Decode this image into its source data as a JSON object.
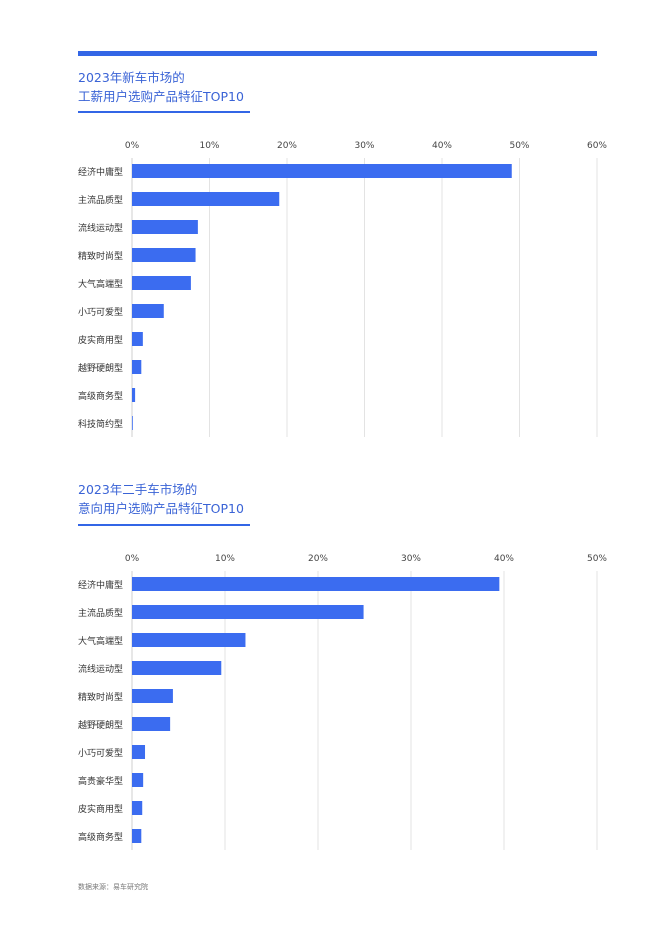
{
  "theme": {
    "accent": "#3366e6",
    "bar": "#3b6cf0",
    "grid": "#e3e3e3",
    "title_color": "#3a63d6"
  },
  "chart1_title": {
    "line1": "2023年新车市场的",
    "line2": "工薪用户选购产品特征TOP10"
  },
  "chart2_title": {
    "line1": "2023年二手车市场的",
    "line2": "意向用户选购产品特征TOP10"
  },
  "source": "数据来源：易车研究院",
  "chart_data": [
    {
      "type": "bar",
      "orientation": "horizontal",
      "title": "2023年新车市场的工薪用户选购产品特征TOP10",
      "xlim": [
        0,
        60
      ],
      "ticks": [
        "0%",
        "10%",
        "20%",
        "30%",
        "40%",
        "50%",
        "60%"
      ],
      "grid": true,
      "categories": [
        "经济中庸型",
        "主流品质型",
        "流线运动型",
        "精致时尚型",
        "大气高端型",
        "小巧可爱型",
        "皮实商用型",
        "越野硬朗型",
        "高级商务型",
        "科技简约型"
      ],
      "values": [
        49,
        19,
        8.5,
        8.2,
        7.6,
        4.1,
        1.4,
        1.2,
        0.4,
        0.1
      ]
    },
    {
      "type": "bar",
      "orientation": "horizontal",
      "title": "2023年二手车市场的意向用户选购产品特征TOP10",
      "xlim": [
        0,
        50
      ],
      "ticks": [
        "0%",
        "10%",
        "20%",
        "30%",
        "40%",
        "50%"
      ],
      "grid": true,
      "categories": [
        "经济中庸型",
        "主流品质型",
        "大气高端型",
        "流线运动型",
        "精致时尚型",
        "越野硬朗型",
        "小巧可爱型",
        "高贵豪华型",
        "皮实商用型",
        "高级商务型"
      ],
      "values": [
        39.5,
        24.9,
        12.2,
        9.6,
        4.4,
        4.1,
        1.4,
        1.2,
        1.1,
        1.0
      ]
    }
  ]
}
